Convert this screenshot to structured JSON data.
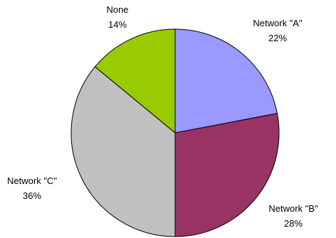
{
  "chart_data": {
    "type": "pie",
    "title": "",
    "start_angle_deg": 0,
    "direction": "clockwise",
    "slices": [
      {
        "label": "Network \"A\"",
        "value": 22,
        "value_label": "22%",
        "color": "#9999FF"
      },
      {
        "label": "Network \"B\"",
        "value": 28,
        "value_label": "28%",
        "color": "#993366"
      },
      {
        "label": "Network \"C\"",
        "value": 36,
        "value_label": "36%",
        "color": "#C0C0C0"
      },
      {
        "label": "None",
        "value": 14,
        "value_label": "14%",
        "color": "#99CC00"
      }
    ],
    "legend": "none",
    "border_color": "#000000"
  }
}
